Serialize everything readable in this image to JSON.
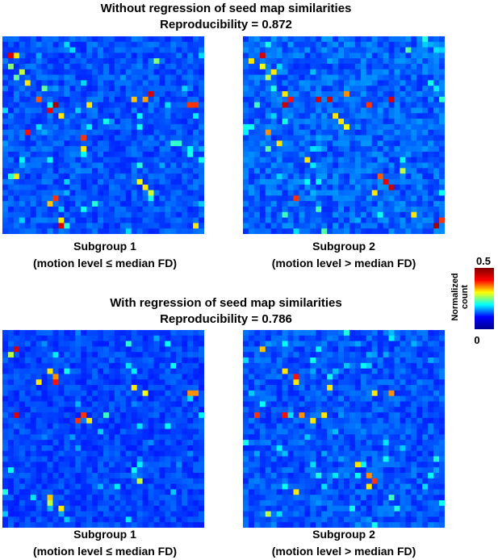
{
  "figure": {
    "panel_top": {
      "title": "Without regression of seed map similarities",
      "subtitle": "Reproducibility = 0.872",
      "left_caption": [
        "Subgroup 1",
        "(motion level ≤ median FD)"
      ],
      "right_caption": [
        "Subgroup 2",
        "(motion level > median FD)"
      ]
    },
    "panel_bottom": {
      "title": "With regression of seed map similarities",
      "subtitle": "Reproducibility = 0.786",
      "left_caption": [
        "Subgroup 1",
        "(motion level ≤ median FD)"
      ],
      "right_caption": [
        "Subgroup 2",
        "(motion level > median FD)"
      ]
    },
    "colorbar": {
      "label_line1": "Normalized",
      "label_line2": "count",
      "max_label": "0.5",
      "min_label": "0",
      "colormap": "jet",
      "stops": [
        "#00008f",
        "#0000ff",
        "#00ffff",
        "#ffff00",
        "#ff0000",
        "#800000"
      ]
    }
  },
  "chart_data": [
    {
      "type": "heatmap",
      "name": "Without regression, Subgroup 1",
      "grid_size": 36,
      "value_range": [
        0,
        0.5
      ],
      "base_level": 0.06,
      "high_cells": [
        {
          "row": 3,
          "col": 1,
          "value": 0.45
        },
        {
          "row": 3,
          "col": 2,
          "value": 0.3
        },
        {
          "row": 5,
          "col": 1,
          "value": 0.22
        },
        {
          "row": 6,
          "col": 3,
          "value": 0.25
        },
        {
          "row": 7,
          "col": 2,
          "value": 0.2
        },
        {
          "row": 8,
          "col": 4,
          "value": 0.3
        },
        {
          "row": 9,
          "col": 7,
          "value": 0.2
        },
        {
          "row": 4,
          "col": 27,
          "value": 0.22
        },
        {
          "row": 11,
          "col": 6,
          "value": 0.38
        },
        {
          "row": 12,
          "col": 9,
          "value": 0.48
        },
        {
          "row": 13,
          "col": 8,
          "value": 0.44
        },
        {
          "row": 14,
          "col": 10,
          "value": 0.3
        },
        {
          "row": 12,
          "col": 15,
          "value": 0.3
        },
        {
          "row": 11,
          "col": 23,
          "value": 0.32
        },
        {
          "row": 11,
          "col": 25,
          "value": 0.34
        },
        {
          "row": 10,
          "col": 26,
          "value": 0.45
        },
        {
          "row": 12,
          "col": 33,
          "value": 0.4
        },
        {
          "row": 12,
          "col": 34,
          "value": 0.4
        },
        {
          "row": 17,
          "col": 4,
          "value": 0.42
        },
        {
          "row": 18,
          "col": 14,
          "value": 0.4
        },
        {
          "row": 20,
          "col": 14,
          "value": 0.3
        },
        {
          "row": 26,
          "col": 24,
          "value": 0.28
        },
        {
          "row": 27,
          "col": 25,
          "value": 0.3
        },
        {
          "row": 28,
          "col": 26,
          "value": 0.26
        },
        {
          "row": 29,
          "col": 9,
          "value": 0.4
        },
        {
          "row": 30,
          "col": 8,
          "value": 0.32
        },
        {
          "row": 33,
          "col": 10,
          "value": 0.3
        },
        {
          "row": 34,
          "col": 10,
          "value": 0.45
        },
        {
          "row": 34,
          "col": 34,
          "value": 0.3
        },
        {
          "row": 25,
          "col": 2,
          "value": 0.3
        }
      ]
    },
    {
      "type": "heatmap",
      "name": "Without regression, Subgroup 2",
      "grid_size": 36,
      "value_range": [
        0,
        0.5
      ],
      "base_level": 0.07,
      "high_cells": [
        {
          "row": 3,
          "col": 3,
          "value": 0.45
        },
        {
          "row": 4,
          "col": 1,
          "value": 0.3
        },
        {
          "row": 5,
          "col": 3,
          "value": 0.28
        },
        {
          "row": 6,
          "col": 5,
          "value": 0.3
        },
        {
          "row": 7,
          "col": 4,
          "value": 0.25
        },
        {
          "row": 10,
          "col": 7,
          "value": 0.3
        },
        {
          "row": 11,
          "col": 8,
          "value": 0.42
        },
        {
          "row": 12,
          "col": 7,
          "value": 0.46
        },
        {
          "row": 11,
          "col": 13,
          "value": 0.45
        },
        {
          "row": 11,
          "col": 15,
          "value": 0.45
        },
        {
          "row": 10,
          "col": 18,
          "value": 0.35
        },
        {
          "row": 12,
          "col": 22,
          "value": 0.4
        },
        {
          "row": 11,
          "col": 26,
          "value": 0.45
        },
        {
          "row": 14,
          "col": 16,
          "value": 0.3
        },
        {
          "row": 15,
          "col": 17,
          "value": 0.3
        },
        {
          "row": 16,
          "col": 18,
          "value": 0.28
        },
        {
          "row": 17,
          "col": 4,
          "value": 0.35
        },
        {
          "row": 19,
          "col": 6,
          "value": 0.3
        },
        {
          "row": 22,
          "col": 11,
          "value": 0.3
        },
        {
          "row": 25,
          "col": 24,
          "value": 0.38
        },
        {
          "row": 26,
          "col": 25,
          "value": 0.44
        },
        {
          "row": 27,
          "col": 26,
          "value": 0.46
        },
        {
          "row": 28,
          "col": 23,
          "value": 0.3
        },
        {
          "row": 29,
          "col": 9,
          "value": 0.4
        },
        {
          "row": 32,
          "col": 30,
          "value": 0.3
        },
        {
          "row": 34,
          "col": 34,
          "value": 0.48
        },
        {
          "row": 33,
          "col": 35,
          "value": 0.4
        },
        {
          "row": 24,
          "col": 28,
          "value": 0.25
        }
      ]
    },
    {
      "type": "heatmap",
      "name": "With regression, Subgroup 1",
      "grid_size": 36,
      "value_range": [
        0,
        0.5
      ],
      "base_level": 0.05,
      "high_cells": [
        {
          "row": 3,
          "col": 2,
          "value": 0.45
        },
        {
          "row": 4,
          "col": 1,
          "value": 0.25
        },
        {
          "row": 7,
          "col": 8,
          "value": 0.3
        },
        {
          "row": 8,
          "col": 9,
          "value": 0.35
        },
        {
          "row": 9,
          "col": 9,
          "value": 0.42
        },
        {
          "row": 9,
          "col": 6,
          "value": 0.3
        },
        {
          "row": 10,
          "col": 23,
          "value": 0.3
        },
        {
          "row": 11,
          "col": 25,
          "value": 0.28
        },
        {
          "row": 11,
          "col": 33,
          "value": 0.35
        },
        {
          "row": 11,
          "col": 34,
          "value": 0.35
        },
        {
          "row": 15,
          "col": 2,
          "value": 0.45
        },
        {
          "row": 15,
          "col": 14,
          "value": 0.4
        },
        {
          "row": 16,
          "col": 13,
          "value": 0.4
        },
        {
          "row": 16,
          "col": 15,
          "value": 0.3
        },
        {
          "row": 27,
          "col": 24,
          "value": 0.25
        },
        {
          "row": 30,
          "col": 8,
          "value": 0.32
        },
        {
          "row": 31,
          "col": 8,
          "value": 0.25
        },
        {
          "row": 32,
          "col": 10,
          "value": 0.3
        }
      ]
    },
    {
      "type": "heatmap",
      "name": "With regression, Subgroup 2",
      "grid_size": 36,
      "value_range": [
        0,
        0.5
      ],
      "base_level": 0.06,
      "high_cells": [
        {
          "row": 3,
          "col": 3,
          "value": 0.32
        },
        {
          "row": 7,
          "col": 7,
          "value": 0.3
        },
        {
          "row": 8,
          "col": 9,
          "value": 0.42
        },
        {
          "row": 9,
          "col": 9,
          "value": 0.3
        },
        {
          "row": 10,
          "col": 15,
          "value": 0.3
        },
        {
          "row": 11,
          "col": 23,
          "value": 0.3
        },
        {
          "row": 11,
          "col": 26,
          "value": 0.35
        },
        {
          "row": 15,
          "col": 2,
          "value": 0.4
        },
        {
          "row": 15,
          "col": 7,
          "value": 0.42
        },
        {
          "row": 15,
          "col": 10,
          "value": 0.35
        },
        {
          "row": 15,
          "col": 14,
          "value": 0.3
        },
        {
          "row": 16,
          "col": 12,
          "value": 0.3
        },
        {
          "row": 24,
          "col": 20,
          "value": 0.3
        },
        {
          "row": 26,
          "col": 22,
          "value": 0.35
        },
        {
          "row": 27,
          "col": 23,
          "value": 0.4
        },
        {
          "row": 28,
          "col": 22,
          "value": 0.3
        },
        {
          "row": 29,
          "col": 9,
          "value": 0.3
        },
        {
          "row": 33,
          "col": 4,
          "value": 0.25
        }
      ]
    }
  ]
}
